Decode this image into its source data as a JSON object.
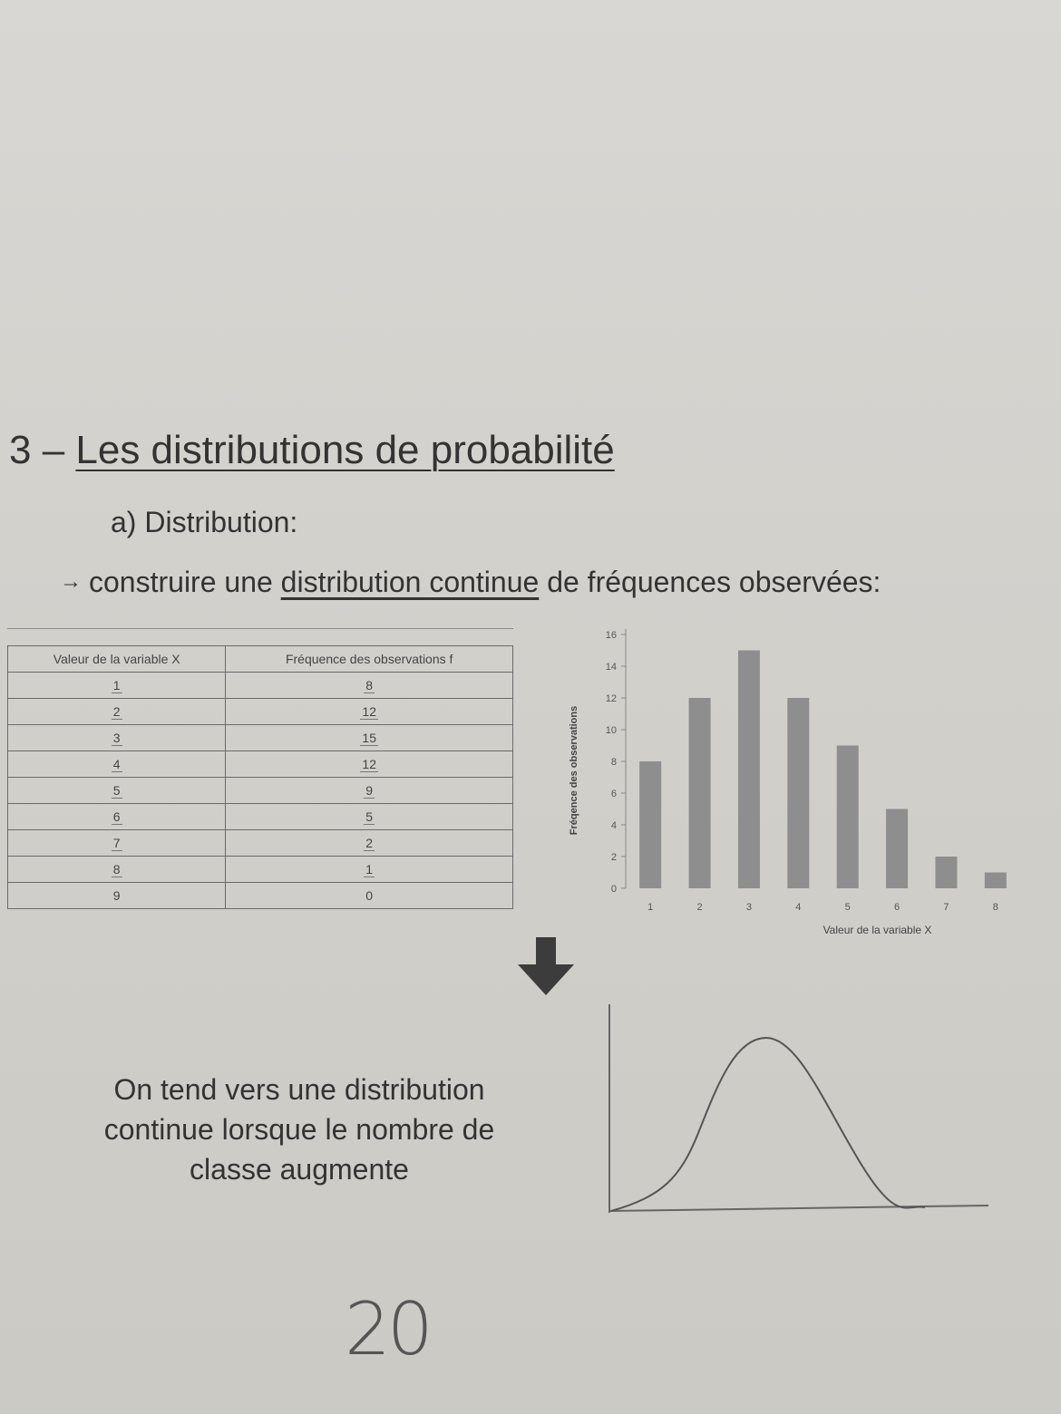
{
  "heading": {
    "number": "3 – ",
    "title": "Les distributions de probabilité"
  },
  "subheading": "a) Distribution:",
  "lead": {
    "arrow": "→",
    "prefix": "construire une ",
    "underlined": "distribution continue",
    "suffix": " de fréquences observées:"
  },
  "table": {
    "headers": [
      "Valeur de la variable X",
      "Fréquence des observations f"
    ],
    "rows": [
      [
        "1",
        "8"
      ],
      [
        "2",
        "12"
      ],
      [
        "3",
        "15"
      ],
      [
        "4",
        "12"
      ],
      [
        "5",
        "9"
      ],
      [
        "6",
        "5"
      ],
      [
        "7",
        "2"
      ],
      [
        "8",
        "1"
      ],
      [
        "9",
        "0"
      ]
    ]
  },
  "chart_data": {
    "type": "bar",
    "categories": [
      "1",
      "2",
      "3",
      "4",
      "5",
      "6",
      "7",
      "8"
    ],
    "values": [
      8,
      12,
      15,
      12,
      9,
      5,
      2,
      1
    ],
    "xlabel": "Valeur de la variable X",
    "ylabel": "Fréqence des observations",
    "ylim": [
      0,
      16
    ],
    "yticks": [
      0,
      2,
      4,
      6,
      8,
      10,
      12,
      14,
      16
    ],
    "bar_color": "#8e8e8e",
    "grid": false
  },
  "caption": {
    "line1": "On tend vers une distribution",
    "line2": "continue lorsque le nombre de",
    "line3": "classe augmente"
  },
  "page_number": "20",
  "icons": [
    "arrow-right-icon",
    "arrow-down-icon"
  ]
}
